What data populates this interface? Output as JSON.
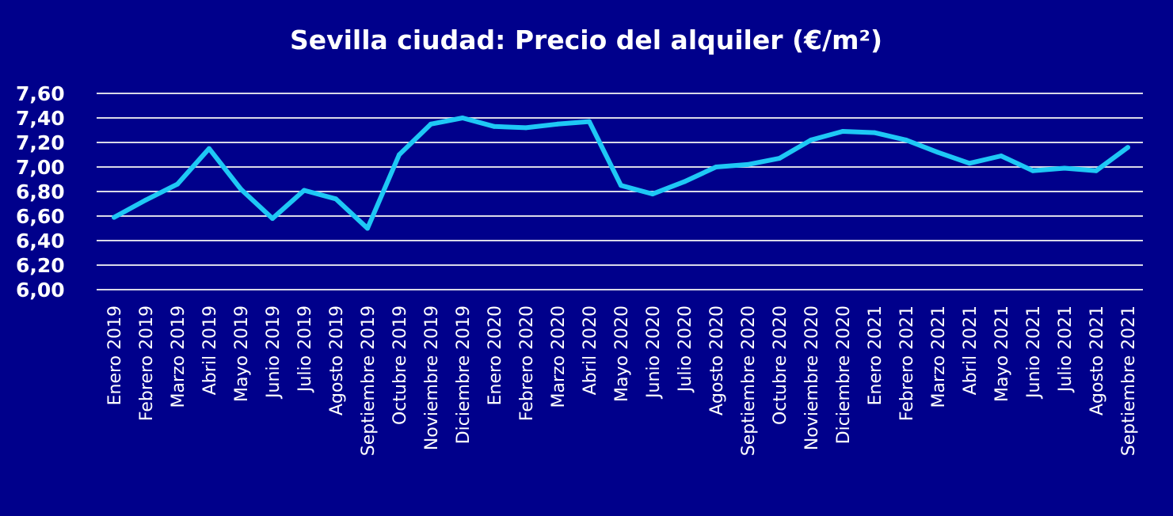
{
  "chart_data": {
    "type": "line",
    "title": "Sevilla ciudad: Precio del alquiler (€/m²)",
    "xlabel": "",
    "ylabel": "",
    "ylim": [
      6.0,
      7.6
    ],
    "y_ticks": [
      "6,00",
      "6,20",
      "6,40",
      "6,60",
      "6,80",
      "7,00",
      "7,20",
      "7,40",
      "7,60"
    ],
    "grid": true,
    "legend": "none",
    "categories": [
      "Enero 2019",
      "Febrero 2019",
      "Marzo 2019",
      "Abril 2019",
      "Mayo 2019",
      "Junio 2019",
      "Julio 2019",
      "Agosto 2019",
      "Septiembre 2019",
      "Octubre 2019",
      "Noviembre 2019",
      "Diciembre 2019",
      "Enero 2020",
      "Febrero 2020",
      "Marzo 2020",
      "Abril 2020",
      "Mayo 2020",
      "Junio 2020",
      "Julio 2020",
      "Agosto 2020",
      "Septiembre 2020",
      "Octubre 2020",
      "Noviembre 2020",
      "Diciembre 2020",
      "Enero 2021",
      "Febrero 2021",
      "Marzo 2021",
      "Abril 2021",
      "Mayo 2021",
      "Junio 2021",
      "Julio 2021",
      "Agosto 2021",
      "Septiembre 2021"
    ],
    "series": [
      {
        "values": [
          6.59,
          6.73,
          6.86,
          7.15,
          6.82,
          6.58,
          6.81,
          6.74,
          6.5,
          7.1,
          7.35,
          7.4,
          7.33,
          7.32,
          7.35,
          7.37,
          6.85,
          6.78,
          6.88,
          7.0,
          7.02,
          7.07,
          7.22,
          7.29,
          7.28,
          7.22,
          7.12,
          7.03,
          7.09,
          6.97,
          6.99,
          6.97,
          7.16
        ],
        "color": "#1ec8f5"
      }
    ],
    "colors": {
      "background": "#00008B",
      "grid": "#d9d9e8",
      "text": "#ffffff",
      "line": "#1ec8f5"
    }
  }
}
